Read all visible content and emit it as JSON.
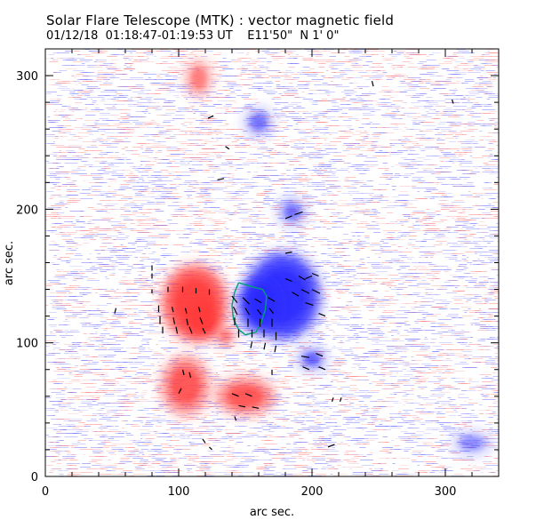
{
  "header": {
    "title": "Solar Flare Telescope (MTK) : vector magnetic field",
    "subtitle": "01/12/18  01:18:47-01:19:53 UT    E11'50\"  N 1' 0\""
  },
  "chart_data": {
    "type": "heatmap",
    "xlabel": "arc sec.",
    "ylabel": "arc sec.",
    "xlim": [
      0,
      340
    ],
    "ylim": [
      0,
      320
    ],
    "x_ticks": [
      0,
      100,
      200,
      300
    ],
    "y_ticks": [
      0,
      100,
      200,
      300
    ],
    "colors": {
      "positive_polarity": "#ff3b3b",
      "negative_polarity": "#2b2bff",
      "neutral_line": "#00a070",
      "vectors": "#000000"
    },
    "regions": [
      {
        "polarity": "positive",
        "x": 112,
        "y": 130,
        "rx": 24,
        "ry": 28,
        "strength": 0.95
      },
      {
        "polarity": "positive",
        "x": 118,
        "y": 118,
        "rx": 12,
        "ry": 14,
        "strength": 1.0
      },
      {
        "polarity": "positive",
        "x": 105,
        "y": 68,
        "rx": 18,
        "ry": 22,
        "strength": 0.7
      },
      {
        "polarity": "positive",
        "x": 150,
        "y": 60,
        "rx": 22,
        "ry": 14,
        "strength": 0.7
      },
      {
        "polarity": "positive",
        "x": 115,
        "y": 298,
        "rx": 10,
        "ry": 14,
        "strength": 0.5
      },
      {
        "polarity": "positive",
        "x": 135,
        "y": 105,
        "rx": 8,
        "ry": 8,
        "strength": 0.5
      },
      {
        "polarity": "negative",
        "x": 178,
        "y": 135,
        "rx": 28,
        "ry": 32,
        "strength": 1.0
      },
      {
        "polarity": "negative",
        "x": 160,
        "y": 128,
        "rx": 16,
        "ry": 20,
        "strength": 0.9
      },
      {
        "polarity": "negative",
        "x": 200,
        "y": 88,
        "rx": 10,
        "ry": 8,
        "strength": 0.6
      },
      {
        "polarity": "negative",
        "x": 185,
        "y": 198,
        "rx": 10,
        "ry": 10,
        "strength": 0.5
      },
      {
        "polarity": "negative",
        "x": 160,
        "y": 265,
        "rx": 10,
        "ry": 10,
        "strength": 0.5
      },
      {
        "polarity": "negative",
        "x": 320,
        "y": 25,
        "rx": 14,
        "ry": 8,
        "strength": 0.4
      }
    ],
    "vectors": [
      [
        80,
        137,
        80,
        140
      ],
      [
        92,
        138,
        92,
        142
      ],
      [
        103,
        138,
        103,
        142
      ],
      [
        113,
        137,
        113,
        141
      ],
      [
        123,
        136,
        123,
        140
      ],
      [
        85,
        128,
        85,
        123
      ],
      [
        95,
        127,
        96,
        123
      ],
      [
        105,
        126,
        106,
        122
      ],
      [
        115,
        127,
        116,
        123
      ],
      [
        86,
        120,
        86,
        114
      ],
      [
        96,
        119,
        97,
        114
      ],
      [
        106,
        118,
        107,
        113
      ],
      [
        116,
        119,
        118,
        114
      ],
      [
        88,
        112,
        88,
        107
      ],
      [
        98,
        112,
        99,
        107
      ],
      [
        108,
        112,
        110,
        107
      ],
      [
        118,
        111,
        120,
        107
      ],
      [
        140,
        135,
        144,
        130
      ],
      [
        148,
        134,
        153,
        129
      ],
      [
        157,
        133,
        162,
        130
      ],
      [
        167,
        134,
        172,
        131
      ],
      [
        141,
        127,
        144,
        121
      ],
      [
        150,
        126,
        153,
        121
      ],
      [
        159,
        125,
        162,
        121
      ],
      [
        168,
        126,
        171,
        122
      ],
      [
        142,
        119,
        142,
        113
      ],
      [
        152,
        118,
        152,
        112
      ],
      [
        161,
        118,
        161,
        112
      ],
      [
        170,
        118,
        170,
        112
      ],
      [
        145,
        110,
        145,
        104
      ],
      [
        155,
        110,
        155,
        104
      ],
      [
        164,
        110,
        164,
        104
      ],
      [
        173,
        108,
        173,
        102
      ],
      [
        155,
        101,
        154,
        96
      ],
      [
        165,
        100,
        164,
        95
      ],
      [
        173,
        98,
        172,
        93
      ],
      [
        180,
        148,
        185,
        146
      ],
      [
        190,
        150,
        195,
        147
      ],
      [
        200,
        152,
        205,
        150
      ],
      [
        192,
        140,
        198,
        137
      ],
      [
        185,
        138,
        190,
        135
      ],
      [
        200,
        140,
        206,
        137
      ],
      [
        195,
        130,
        201,
        128
      ],
      [
        205,
        122,
        210,
        120
      ],
      [
        192,
        90,
        198,
        89
      ],
      [
        203,
        92,
        208,
        90
      ],
      [
        193,
        82,
        198,
        80
      ],
      [
        205,
        82,
        210,
        80
      ],
      [
        103,
        80,
        104,
        76
      ],
      [
        108,
        78,
        109,
        74
      ],
      [
        102,
        66,
        100,
        62
      ],
      [
        140,
        62,
        145,
        60
      ],
      [
        150,
        62,
        155,
        60
      ],
      [
        145,
        53,
        150,
        52
      ],
      [
        155,
        52,
        160,
        51
      ],
      [
        142,
        45,
        143,
        42
      ],
      [
        118,
        28,
        120,
        25
      ],
      [
        123,
        22,
        125,
        20
      ],
      [
        170,
        80,
        170,
        76
      ],
      [
        195,
        148,
        200,
        150
      ],
      [
        52,
        122,
        53,
        126
      ],
      [
        80,
        158,
        80,
        154
      ],
      [
        80,
        148,
        80,
        152
      ],
      [
        245,
        296,
        246,
        292
      ],
      [
        305,
        282,
        306,
        279
      ],
      [
        122,
        268,
        126,
        270
      ],
      [
        135,
        247,
        138,
        245
      ],
      [
        129,
        222,
        134,
        223
      ],
      [
        180,
        193,
        185,
        195
      ],
      [
        180,
        167,
        185,
        168
      ],
      [
        216,
        59,
        215,
        56
      ],
      [
        222,
        59,
        221,
        56
      ],
      [
        212,
        22,
        217,
        24
      ],
      [
        187,
        196,
        193,
        198
      ]
    ],
    "neutral_line": [
      [
        145,
        145
      ],
      [
        155,
        142
      ],
      [
        163,
        140
      ],
      [
        166,
        135
      ],
      [
        165,
        125
      ],
      [
        162,
        115
      ],
      [
        158,
        108
      ],
      [
        150,
        106
      ],
      [
        145,
        110
      ],
      [
        141,
        118
      ],
      [
        140,
        128
      ],
      [
        142,
        138
      ],
      [
        145,
        145
      ]
    ]
  }
}
